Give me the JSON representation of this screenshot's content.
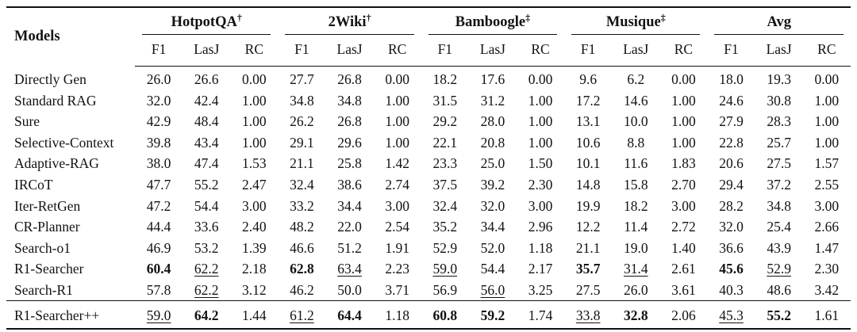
{
  "table": {
    "models_header": "Models",
    "groups": [
      {
        "label": "HotpotQA",
        "sup": "†"
      },
      {
        "label": "2Wiki",
        "sup": "†"
      },
      {
        "label": "Bamboogle",
        "sup": "‡"
      },
      {
        "label": "Musique",
        "sup": "‡"
      },
      {
        "label": "Avg",
        "sup": ""
      }
    ],
    "subcols": [
      "F1",
      "LasJ",
      "RC"
    ],
    "style_legend": {
      "b": "bold = best result",
      "u": "underline = second best result"
    },
    "rows": [
      {
        "model": "Directly Gen",
        "cells": [
          [
            "26.0",
            ""
          ],
          [
            "26.6",
            ""
          ],
          [
            "0.00",
            ""
          ],
          [
            "27.7",
            ""
          ],
          [
            "26.8",
            ""
          ],
          [
            "0.00",
            ""
          ],
          [
            "18.2",
            ""
          ],
          [
            "17.6",
            ""
          ],
          [
            "0.00",
            ""
          ],
          [
            "9.6",
            ""
          ],
          [
            "6.2",
            ""
          ],
          [
            "0.00",
            ""
          ],
          [
            "18.0",
            ""
          ],
          [
            "19.3",
            ""
          ],
          [
            "0.00",
            ""
          ]
        ]
      },
      {
        "model": "Standard RAG",
        "cells": [
          [
            "32.0",
            ""
          ],
          [
            "42.4",
            ""
          ],
          [
            "1.00",
            ""
          ],
          [
            "34.8",
            ""
          ],
          [
            "34.8",
            ""
          ],
          [
            "1.00",
            ""
          ],
          [
            "31.5",
            ""
          ],
          [
            "31.2",
            ""
          ],
          [
            "1.00",
            ""
          ],
          [
            "17.2",
            ""
          ],
          [
            "14.6",
            ""
          ],
          [
            "1.00",
            ""
          ],
          [
            "24.6",
            ""
          ],
          [
            "30.8",
            ""
          ],
          [
            "1.00",
            ""
          ]
        ]
      },
      {
        "model": "Sure",
        "cells": [
          [
            "42.9",
            ""
          ],
          [
            "48.4",
            ""
          ],
          [
            "1.00",
            ""
          ],
          [
            "26.2",
            ""
          ],
          [
            "26.8",
            ""
          ],
          [
            "1.00",
            ""
          ],
          [
            "29.2",
            ""
          ],
          [
            "28.0",
            ""
          ],
          [
            "1.00",
            ""
          ],
          [
            "13.1",
            ""
          ],
          [
            "10.0",
            ""
          ],
          [
            "1.00",
            ""
          ],
          [
            "27.9",
            ""
          ],
          [
            "28.3",
            ""
          ],
          [
            "1.00",
            ""
          ]
        ]
      },
      {
        "model": "Selective-Context",
        "cells": [
          [
            "39.8",
            ""
          ],
          [
            "43.4",
            ""
          ],
          [
            "1.00",
            ""
          ],
          [
            "29.1",
            ""
          ],
          [
            "29.6",
            ""
          ],
          [
            "1.00",
            ""
          ],
          [
            "22.1",
            ""
          ],
          [
            "20.8",
            ""
          ],
          [
            "1.00",
            ""
          ],
          [
            "10.6",
            ""
          ],
          [
            "8.8",
            ""
          ],
          [
            "1.00",
            ""
          ],
          [
            "22.8",
            ""
          ],
          [
            "25.7",
            ""
          ],
          [
            "1.00",
            ""
          ]
        ]
      },
      {
        "model": "Adaptive-RAG",
        "cells": [
          [
            "38.0",
            ""
          ],
          [
            "47.4",
            ""
          ],
          [
            "1.53",
            ""
          ],
          [
            "21.1",
            ""
          ],
          [
            "25.8",
            ""
          ],
          [
            "1.42",
            ""
          ],
          [
            "23.3",
            ""
          ],
          [
            "25.0",
            ""
          ],
          [
            "1.50",
            ""
          ],
          [
            "10.1",
            ""
          ],
          [
            "11.6",
            ""
          ],
          [
            "1.83",
            ""
          ],
          [
            "20.6",
            ""
          ],
          [
            "27.5",
            ""
          ],
          [
            "1.57",
            ""
          ]
        ]
      },
      {
        "model": "IRCoT",
        "cells": [
          [
            "47.7",
            ""
          ],
          [
            "55.2",
            ""
          ],
          [
            "2.47",
            ""
          ],
          [
            "32.4",
            ""
          ],
          [
            "38.6",
            ""
          ],
          [
            "2.74",
            ""
          ],
          [
            "37.5",
            ""
          ],
          [
            "39.2",
            ""
          ],
          [
            "2.30",
            ""
          ],
          [
            "14.8",
            ""
          ],
          [
            "15.8",
            ""
          ],
          [
            "2.70",
            ""
          ],
          [
            "29.4",
            ""
          ],
          [
            "37.2",
            ""
          ],
          [
            "2.55",
            ""
          ]
        ]
      },
      {
        "model": "Iter-RetGen",
        "cells": [
          [
            "47.2",
            ""
          ],
          [
            "54.4",
            ""
          ],
          [
            "3.00",
            ""
          ],
          [
            "33.2",
            ""
          ],
          [
            "34.4",
            ""
          ],
          [
            "3.00",
            ""
          ],
          [
            "32.4",
            ""
          ],
          [
            "32.0",
            ""
          ],
          [
            "3.00",
            ""
          ],
          [
            "19.9",
            ""
          ],
          [
            "18.2",
            ""
          ],
          [
            "3.00",
            ""
          ],
          [
            "28.2",
            ""
          ],
          [
            "34.8",
            ""
          ],
          [
            "3.00",
            ""
          ]
        ]
      },
      {
        "model": "CR-Planner",
        "cells": [
          [
            "44.4",
            ""
          ],
          [
            "33.6",
            ""
          ],
          [
            "2.40",
            ""
          ],
          [
            "48.2",
            ""
          ],
          [
            "22.0",
            ""
          ],
          [
            "2.54",
            ""
          ],
          [
            "35.2",
            ""
          ],
          [
            "34.4",
            ""
          ],
          [
            "2.96",
            ""
          ],
          [
            "12.2",
            ""
          ],
          [
            "11.4",
            ""
          ],
          [
            "2.72",
            ""
          ],
          [
            "32.0",
            ""
          ],
          [
            "25.4",
            ""
          ],
          [
            "2.66",
            ""
          ]
        ]
      },
      {
        "model": "Search-o1",
        "cells": [
          [
            "46.9",
            ""
          ],
          [
            "53.2",
            ""
          ],
          [
            "1.39",
            ""
          ],
          [
            "46.6",
            ""
          ],
          [
            "51.2",
            ""
          ],
          [
            "1.91",
            ""
          ],
          [
            "52.9",
            ""
          ],
          [
            "52.0",
            ""
          ],
          [
            "1.18",
            ""
          ],
          [
            "21.1",
            ""
          ],
          [
            "19.0",
            ""
          ],
          [
            "1.40",
            ""
          ],
          [
            "36.6",
            ""
          ],
          [
            "43.9",
            ""
          ],
          [
            "1.47",
            ""
          ]
        ]
      },
      {
        "model": "R1-Searcher",
        "cells": [
          [
            "60.4",
            "b"
          ],
          [
            "62.2",
            "u"
          ],
          [
            "2.18",
            ""
          ],
          [
            "62.8",
            "b"
          ],
          [
            "63.4",
            "u"
          ],
          [
            "2.23",
            ""
          ],
          [
            "59.0",
            "u"
          ],
          [
            "54.4",
            ""
          ],
          [
            "2.17",
            ""
          ],
          [
            "35.7",
            "b"
          ],
          [
            "31.4",
            "u"
          ],
          [
            "2.61",
            ""
          ],
          [
            "45.6",
            "b"
          ],
          [
            "52.9",
            "u"
          ],
          [
            "2.30",
            ""
          ]
        ]
      },
      {
        "model": "Search-R1",
        "cells": [
          [
            "57.8",
            ""
          ],
          [
            "62.2",
            "u"
          ],
          [
            "3.12",
            ""
          ],
          [
            "46.2",
            ""
          ],
          [
            "50.0",
            ""
          ],
          [
            "3.71",
            ""
          ],
          [
            "56.9",
            ""
          ],
          [
            "56.0",
            "u"
          ],
          [
            "3.25",
            ""
          ],
          [
            "27.5",
            ""
          ],
          [
            "26.0",
            ""
          ],
          [
            "3.61",
            ""
          ],
          [
            "40.3",
            ""
          ],
          [
            "48.6",
            ""
          ],
          [
            "3.42",
            ""
          ]
        ]
      },
      {
        "model": "R1-Searcher++",
        "final": true,
        "cells": [
          [
            "59.0",
            "u"
          ],
          [
            "64.2",
            "b"
          ],
          [
            "1.44",
            ""
          ],
          [
            "61.2",
            "u"
          ],
          [
            "64.4",
            "b"
          ],
          [
            "1.18",
            ""
          ],
          [
            "60.8",
            "b"
          ],
          [
            "59.2",
            "b"
          ],
          [
            "1.74",
            ""
          ],
          [
            "33.8",
            "u"
          ],
          [
            "32.8",
            "b"
          ],
          [
            "2.06",
            ""
          ],
          [
            "45.3",
            "u"
          ],
          [
            "55.2",
            "b"
          ],
          [
            "1.61",
            ""
          ]
        ]
      }
    ]
  },
  "colors": {
    "text": "#121212",
    "rule": "#111111",
    "background": "#ffffff"
  }
}
